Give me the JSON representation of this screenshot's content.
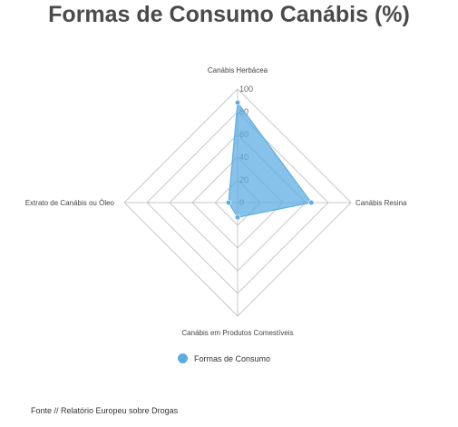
{
  "chart_data": {
    "type": "radar",
    "title": "Formas de Consumo Canábis (%)",
    "axes": [
      "Canábis Herbácea",
      "Canábis Resina",
      "Canábis em Produtos Comestíveis",
      "Extrato de Canábis ou Óleo"
    ],
    "rlim": [
      0,
      100
    ],
    "ticks": [
      "0",
      "20",
      "40",
      "60",
      "80",
      "100"
    ],
    "series": [
      {
        "name": "Formas de Consumo",
        "values": [
          88,
          65,
          13,
          8
        ]
      }
    ],
    "grid": true,
    "legend": "bottom-center"
  },
  "colors": {
    "series_fill": "#5dade2",
    "series_stroke": "#5dade2",
    "grid": "#c8c8c8"
  },
  "source": "Fonte // Relatório Europeu sobre Drogas"
}
